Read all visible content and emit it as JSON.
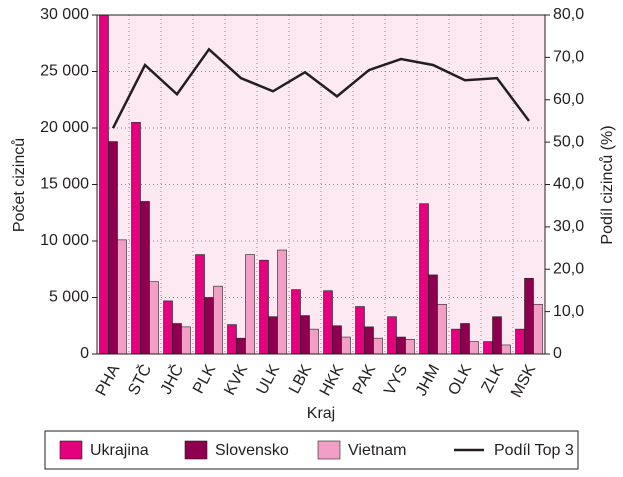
{
  "chart_data": {
    "type": "bar",
    "x_label": "Kraj",
    "y_label": "Počet cizinců",
    "y2_label": "Podíl cizinců (%)",
    "categories": [
      "PHA",
      "STČ",
      "JHČ",
      "PLK",
      "KVK",
      "ULK",
      "LBK",
      "HKK",
      "PAK",
      "VYS",
      "JHM",
      "OLK",
      "ZLK",
      "MSK"
    ],
    "series": [
      {
        "name": "Ukrajina",
        "color": "#e5007d",
        "values": [
          30000,
          20500,
          4700,
          8800,
          2600,
          8300,
          5700,
          5600,
          4200,
          3300,
          13300,
          2200,
          1100,
          2200
        ]
      },
      {
        "name": "Slovensko",
        "color": "#8e004f",
        "values": [
          18800,
          13500,
          2700,
          5000,
          1400,
          3300,
          3400,
          2500,
          2400,
          1500,
          7000,
          2700,
          3300,
          6700
        ]
      },
      {
        "name": "Vietnam",
        "color": "#f29fc5",
        "values": [
          10100,
          6400,
          2400,
          6000,
          8800,
          9200,
          2200,
          1500,
          1400,
          1300,
          4400,
          1100,
          800,
          4400
        ]
      },
      {
        "name": "Podíl Top 3",
        "color": "#231f20",
        "type": "line",
        "axis": "y2",
        "values": [
          53.3,
          68.2,
          61.3,
          71.9,
          65.1,
          62.0,
          66.5,
          60.8,
          67.0,
          69.6,
          68.2,
          64.6,
          65.1,
          55.0
        ]
      }
    ],
    "ylim": [
      0,
      30000
    ],
    "yticks": [
      0,
      {
        "value": 5000,
        "label": "5 000"
      },
      {
        "value": 10000,
        "label": "10 000"
      },
      {
        "value": 15000,
        "label": "15 000"
      },
      {
        "value": 20000,
        "label": "20 000"
      },
      {
        "value": 25000,
        "label": "25 000"
      },
      {
        "value": 30000,
        "label": "30 000"
      }
    ],
    "y2lim": [
      0,
      80
    ],
    "y2ticks": [
      0,
      {
        "value": 10,
        "label": "10,0"
      },
      {
        "value": 20,
        "label": "20,0"
      },
      {
        "value": 30,
        "label": "30,0"
      },
      {
        "value": 40,
        "label": "40,0"
      },
      {
        "value": 50,
        "label": "50,0"
      },
      {
        "value": 60,
        "label": "60,0"
      },
      {
        "value": 70,
        "label": "70,0"
      },
      {
        "value": 80,
        "label": "80,0"
      }
    ],
    "grid": true,
    "legend": "bottom"
  }
}
